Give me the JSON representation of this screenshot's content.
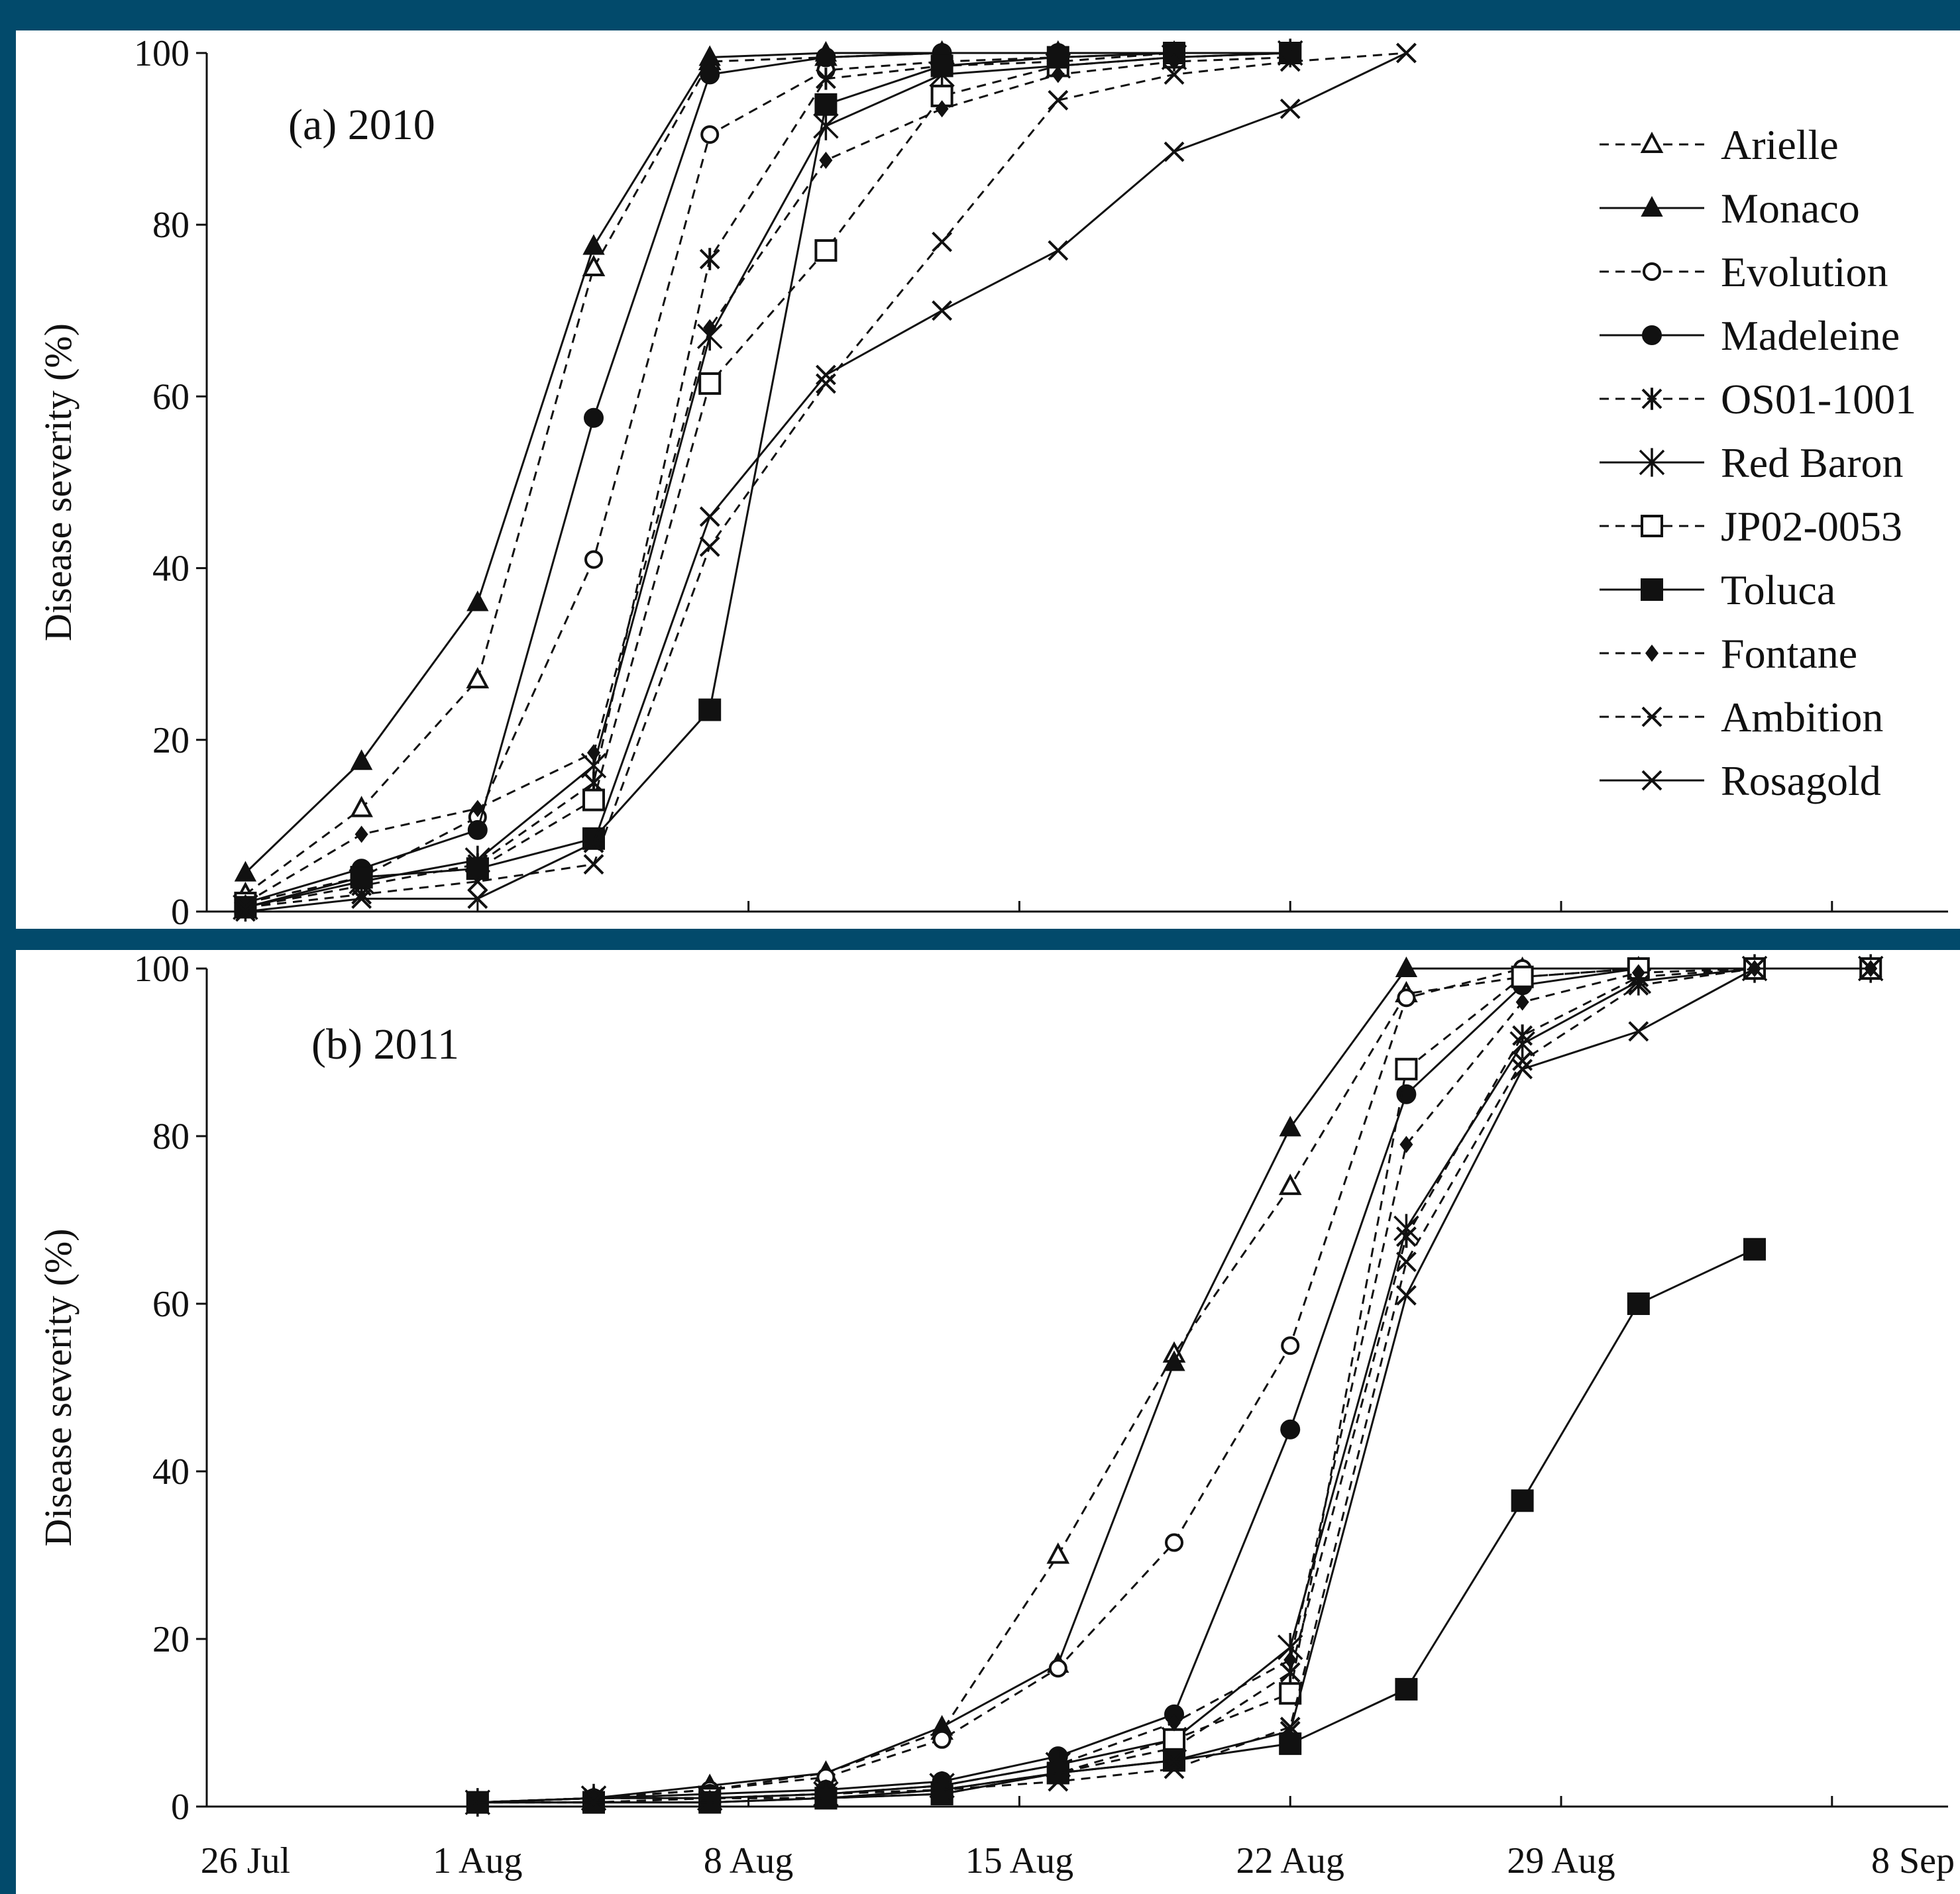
{
  "chart_data": [
    {
      "type": "line",
      "panel_label": "(a) 2010",
      "title": "",
      "xlabel": "",
      "ylabel": "Disease severity (%)",
      "ylim": [
        0,
        100
      ],
      "y_ticks": [
        0,
        20,
        40,
        60,
        80,
        100
      ],
      "x_ticks": [
        "26 Jul",
        "1 Aug",
        "8 Aug",
        "15 Aug",
        "22 Aug",
        "29 Aug",
        "8 Sep"
      ],
      "xlim": [
        "2010-07-25",
        "2010-09-08"
      ],
      "grid": false,
      "legend_position": "top-right",
      "x": [
        "2010-07-26",
        "2010-07-29",
        "2010-08-01",
        "2010-08-04",
        "2010-08-07",
        "2010-08-10",
        "2010-08-13",
        "2010-08-16",
        "2010-08-19",
        "2010-08-22",
        "2010-08-25"
      ],
      "series": [
        {
          "name": "Arielle",
          "style": "dashed",
          "marker": "triangle-open",
          "values": [
            2,
            12,
            27,
            75,
            99,
            99.5,
            100,
            100,
            100,
            100,
            null
          ]
        },
        {
          "name": "Monaco",
          "style": "solid",
          "marker": "triangle-filled",
          "values": [
            4.5,
            17.5,
            36,
            77.5,
            99.5,
            100,
            100,
            100,
            100,
            100,
            null
          ]
        },
        {
          "name": "Evolution",
          "style": "dashed",
          "marker": "circle-open",
          "values": [
            1,
            4,
            11,
            41,
            90.5,
            98,
            99,
            99.5,
            100,
            100,
            null
          ]
        },
        {
          "name": "Madeleine",
          "style": "solid",
          "marker": "circle-filled",
          "values": [
            1,
            5,
            9.5,
            57.5,
            97.5,
            99.5,
            100,
            100,
            100,
            100,
            null
          ]
        },
        {
          "name": "OS01-1001",
          "style": "dashed",
          "marker": "asterisk",
          "values": [
            0.5,
            3,
            5.5,
            15,
            76,
            97,
            98.5,
            99,
            100,
            100,
            null
          ]
        },
        {
          "name": "Red Baron",
          "style": "solid",
          "marker": "asterisk-large",
          "values": [
            0.5,
            3.5,
            6,
            17,
            67,
            91.5,
            97.5,
            98.5,
            99.5,
            100,
            null
          ]
        },
        {
          "name": "JP02-0053",
          "style": "dashed",
          "marker": "square-open",
          "values": [
            1,
            4,
            5,
            13,
            61.5,
            77,
            95,
            98.5,
            99.5,
            100,
            null
          ]
        },
        {
          "name": "Toluca",
          "style": "solid",
          "marker": "square-filled",
          "values": [
            0.5,
            4,
            5,
            8.5,
            23.5,
            94,
            98.5,
            99.5,
            100,
            100,
            null
          ]
        },
        {
          "name": "Fontane",
          "style": "dashed",
          "marker": "diamond-filled",
          "values": [
            1,
            9,
            12,
            18.5,
            68,
            87.5,
            93.5,
            97.5,
            99,
            99.5,
            null
          ]
        },
        {
          "name": "Ambition",
          "style": "dashed",
          "marker": "x",
          "values": [
            0.5,
            2,
            3.5,
            5.5,
            42.5,
            61.5,
            78,
            94.5,
            97.5,
            99,
            100
          ]
        },
        {
          "name": "Rosagold",
          "style": "solid",
          "marker": "x",
          "values": [
            0,
            1.5,
            1.5,
            8,
            46,
            62.5,
            70,
            77,
            88.5,
            93.5,
            100
          ]
        }
      ]
    },
    {
      "type": "line",
      "panel_label": "(b) 2011",
      "title": "",
      "xlabel": "",
      "ylabel": "Disease severity (%)",
      "ylim": [
        0,
        100
      ],
      "y_ticks": [
        0,
        20,
        40,
        60,
        80,
        100
      ],
      "x_ticks": [
        "26 Jul",
        "1 Aug",
        "8 Aug",
        "15 Aug",
        "22 Aug",
        "29 Aug",
        "8 Sep"
      ],
      "xlim": [
        "2011-07-25",
        "2011-09-08"
      ],
      "grid": false,
      "x": [
        "2011-08-01",
        "2011-08-04",
        "2011-08-07",
        "2011-08-10",
        "2011-08-13",
        "2011-08-16",
        "2011-08-19",
        "2011-08-22",
        "2011-08-25",
        "2011-08-28",
        "2011-08-31",
        "2011-09-03",
        "2011-09-06"
      ],
      "series": [
        {
          "name": "Arielle",
          "style": "dashed",
          "marker": "triangle-open",
          "values": [
            0.5,
            1,
            2,
            4,
            9,
            30,
            54,
            74,
            97,
            99,
            100,
            100,
            100
          ]
        },
        {
          "name": "Monaco",
          "style": "solid",
          "marker": "triangle-filled",
          "values": [
            0.5,
            1,
            2.5,
            4,
            9.5,
            17,
            53,
            81,
            100,
            100,
            100,
            100,
            100
          ]
        },
        {
          "name": "Evolution",
          "style": "dashed",
          "marker": "circle-open",
          "values": [
            0.5,
            1,
            2,
            3.5,
            8,
            16.5,
            31.5,
            55,
            96.5,
            100,
            100,
            100,
            100
          ]
        },
        {
          "name": "Madeleine",
          "style": "solid",
          "marker": "circle-filled",
          "values": [
            0.5,
            1,
            1.5,
            2,
            3,
            6,
            11,
            45,
            85,
            98,
            100,
            100,
            100
          ]
        },
        {
          "name": "OS01-1001",
          "style": "dashed",
          "marker": "asterisk",
          "values": [
            0.5,
            1,
            1,
            1.5,
            2,
            4,
            7,
            16,
            68,
            92,
            99,
            100,
            100
          ]
        },
        {
          "name": "Red Baron",
          "style": "solid",
          "marker": "asterisk-large",
          "values": [
            0.5,
            1,
            1,
            1.5,
            2.5,
            5,
            8,
            19,
            69,
            91,
            98.5,
            100,
            100
          ]
        },
        {
          "name": "JP02-0053",
          "style": "dashed",
          "marker": "square-open",
          "values": [
            0.5,
            0.5,
            1,
            1,
            1.5,
            4,
            8,
            13.5,
            88,
            99,
            100,
            100,
            100
          ]
        },
        {
          "name": "Toluca",
          "style": "solid",
          "marker": "square-filled",
          "values": [
            0.5,
            0.5,
            0.5,
            1,
            1.5,
            4,
            5.5,
            7.5,
            14,
            36.5,
            60,
            66.5,
            null
          ]
        },
        {
          "name": "Fontane",
          "style": "dashed",
          "marker": "diamond-filled",
          "values": [
            0.5,
            1,
            1,
            1.5,
            2.5,
            5,
            10,
            17.5,
            79,
            96,
            99.5,
            100,
            100
          ]
        },
        {
          "name": "Ambition",
          "style": "dashed",
          "marker": "x",
          "values": [
            0.5,
            0.5,
            1,
            1,
            2,
            3,
            4.5,
            9.5,
            65,
            89,
            98,
            100,
            100
          ]
        },
        {
          "name": "Rosagold",
          "style": "solid",
          "marker": "x",
          "values": [
            0.5,
            0.5,
            0.5,
            1,
            2,
            4,
            5.5,
            9,
            61,
            88,
            92.5,
            100,
            100
          ]
        }
      ]
    }
  ],
  "colors": {
    "frame": "#024a6b",
    "plot_background": "#ffffff",
    "ink": "#111111"
  }
}
